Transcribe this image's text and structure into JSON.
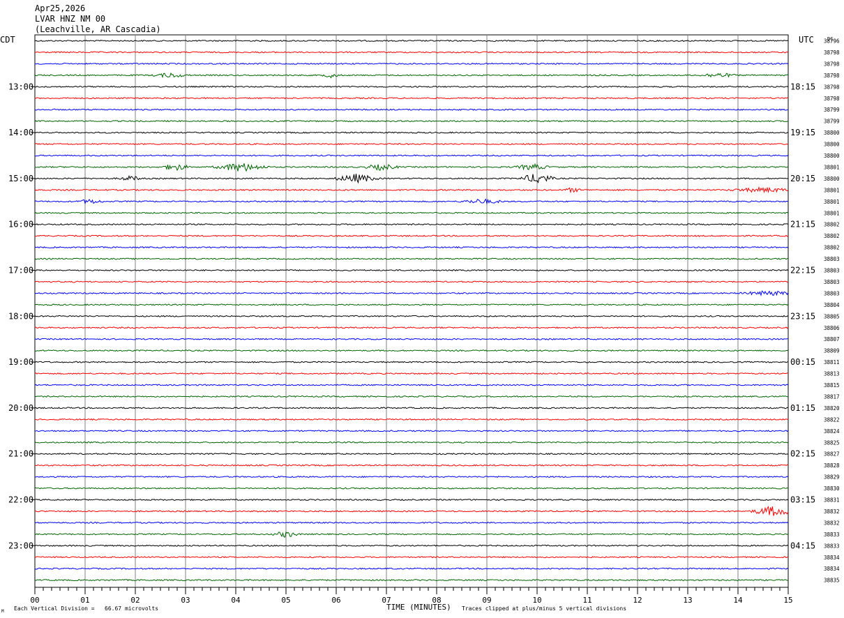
{
  "header": {
    "date": "Apr25,2026",
    "station": "LVAR HNZ NM 00",
    "location": "(Leachville, AR Cascadia)"
  },
  "left_axis_label": "CDT",
  "right_axis_label": "UTC",
  "dc_label": "DC",
  "footer": {
    "vertical_division": "Each Vertical Division =   66.67 microvolts",
    "x_title": "TIME (MINUTES)",
    "clip_note": "Traces clipped at plus/minus 5 vertical divisions",
    "corner_mark": "M"
  },
  "chart_data": {
    "type": "line",
    "x_ticks": [
      "00",
      "01",
      "02",
      "03",
      "04",
      "05",
      "06",
      "07",
      "08",
      "09",
      "10",
      "11",
      "12",
      "13",
      "14",
      "15"
    ],
    "x_range_minutes": [
      0,
      15
    ],
    "line_interval_minutes": 15,
    "trace_colors": [
      "#000000",
      "#ff0000",
      "#0000ff",
      "#006400"
    ],
    "left_hour_labels": [
      "13:00",
      "14:00",
      "15:00",
      "16:00",
      "17:00",
      "18:00",
      "19:00",
      "20:00",
      "21:00",
      "22:00",
      "23:00"
    ],
    "right_hour_labels": [
      "18:15",
      "19:15",
      "20:15",
      "21:15",
      "22:15",
      "23:15",
      "00:15",
      "01:15",
      "02:15",
      "03:15",
      "04:15"
    ],
    "dc_offsets": [
      "38796",
      "38798",
      "38798",
      "38798",
      "38798",
      "38798",
      "38799",
      "38799",
      "38800",
      "38800",
      "38800",
      "38801",
      "38800",
      "38801",
      "38801",
      "38801",
      "38802",
      "38802",
      "38802",
      "38803",
      "38803",
      "38803",
      "38803",
      "38804",
      "38805",
      "38806",
      "38807",
      "38809",
      "38811",
      "38813",
      "38815",
      "38817",
      "38820",
      "38822",
      "38824",
      "38825",
      "38827",
      "38828",
      "38829",
      "38830",
      "38831",
      "38832",
      "38832",
      "38833",
      "38833",
      "38834",
      "38834",
      "38835"
    ],
    "events": [
      {
        "trace": 3,
        "minute": 2.7,
        "amp": 3,
        "dur": 0.4
      },
      {
        "trace": 3,
        "minute": 5.9,
        "amp": 3,
        "dur": 0.2
      },
      {
        "trace": 3,
        "minute": 13.6,
        "amp": 3,
        "dur": 0.4
      },
      {
        "trace": 11,
        "minute": 2.8,
        "amp": 5,
        "dur": 0.3
      },
      {
        "trace": 11,
        "minute": 4.1,
        "amp": 6,
        "dur": 0.6
      },
      {
        "trace": 11,
        "minute": 6.9,
        "amp": 4,
        "dur": 0.4
      },
      {
        "trace": 11,
        "minute": 9.9,
        "amp": 4,
        "dur": 0.4
      },
      {
        "trace": 12,
        "minute": 6.4,
        "amp": 6,
        "dur": 0.5
      },
      {
        "trace": 12,
        "minute": 10.0,
        "amp": 7,
        "dur": 0.4
      },
      {
        "trace": 12,
        "minute": 1.9,
        "amp": 3,
        "dur": 0.3
      },
      {
        "trace": 13,
        "minute": 14.5,
        "amp": 3,
        "dur": 0.8
      },
      {
        "trace": 13,
        "minute": 10.7,
        "amp": 3,
        "dur": 0.2
      },
      {
        "trace": 14,
        "minute": 1.1,
        "amp": 3,
        "dur": 0.3
      },
      {
        "trace": 14,
        "minute": 8.9,
        "amp": 3,
        "dur": 0.5
      },
      {
        "trace": 22,
        "minute": 14.6,
        "amp": 3,
        "dur": 0.6
      },
      {
        "trace": 41,
        "minute": 14.7,
        "amp": 7,
        "dur": 0.5
      },
      {
        "trace": 43,
        "minute": 5.0,
        "amp": 4,
        "dur": 0.3
      }
    ]
  }
}
